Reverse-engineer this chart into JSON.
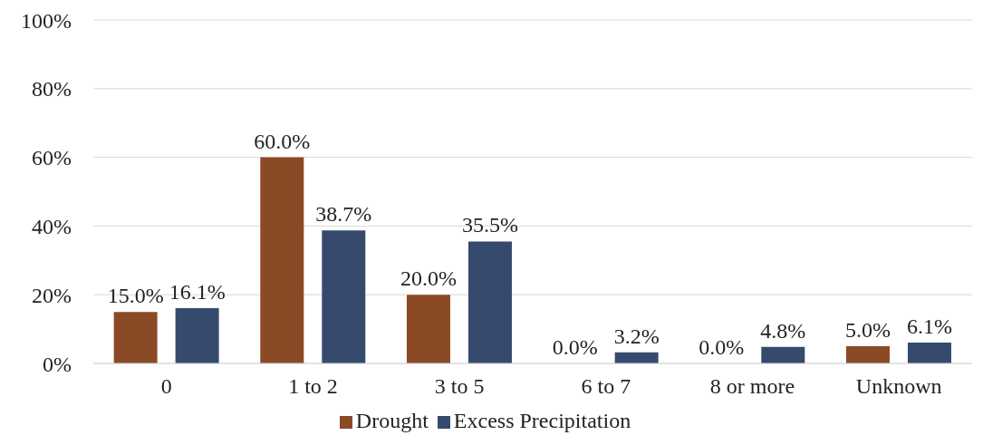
{
  "chart_data": {
    "type": "bar",
    "categories": [
      "0",
      "1 to 2",
      "3 to 5",
      "6 to 7",
      "8 or more",
      "Unknown"
    ],
    "series": [
      {
        "name": "Drought",
        "color": "#8b4a26",
        "values": [
          15.0,
          60.0,
          20.0,
          0.0,
          0.0,
          5.0
        ],
        "value_labels": [
          "15.0%",
          "60.0%",
          "20.0%",
          "0.0%",
          "0.0%",
          "5.0%"
        ]
      },
      {
        "name": "Excess Precipitation",
        "color": "#364a6e",
        "values": [
          16.1,
          38.7,
          35.5,
          3.2,
          4.8,
          6.1
        ],
        "value_labels": [
          "16.1%",
          "38.7%",
          "35.5%",
          "3.2%",
          "4.8%",
          "6.1%"
        ]
      }
    ],
    "ylim": [
      0,
      100
    ],
    "yticks": [
      {
        "value": 0,
        "label": "0%"
      },
      {
        "value": 20,
        "label": "20%"
      },
      {
        "value": 40,
        "label": "40%"
      },
      {
        "value": 60,
        "label": "60%"
      },
      {
        "value": 80,
        "label": "80%"
      },
      {
        "value": 100,
        "label": "100%"
      }
    ],
    "grid": "y",
    "legend": "bottom"
  }
}
